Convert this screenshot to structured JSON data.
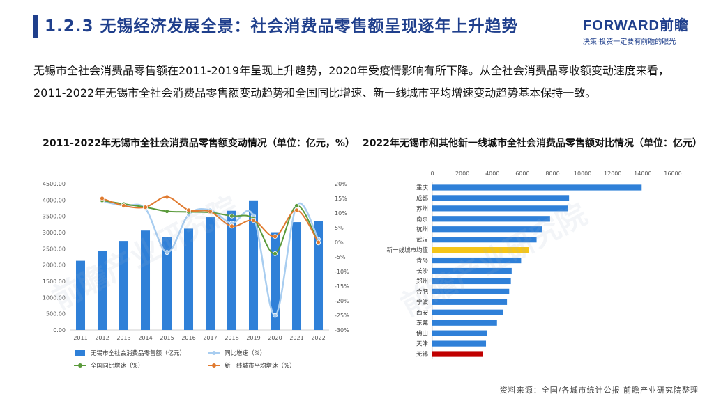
{
  "slide": {
    "title": "1.2.3 无锡经济发展全景：社会消费品零售额呈现逐年上升趋势",
    "intro": "无锡市全社会消费品零售额在2011-2019年呈现上升趋势，2020年受疫情影响有所下降。从全社会消费品零收额变动速度来看，2011-2022年无锡市全社会消费品零售额变动趋势和全国同比增速、新一线城市平均增速变动趋势基本保持一致。",
    "source": "资料来源：全国/各城市统计公报 前瞻产业研究院整理"
  },
  "brand": {
    "name": "FORWARD前瞻",
    "slogan": "决策·投资一定要有前瞻的眼光"
  },
  "watermark": "前瞻产业研究院",
  "colors": {
    "title_blue": "#1f3f8c",
    "bar_blue": "#2f80d8",
    "line_light_blue": "#a8cdf0",
    "line_green": "#5a9a3b",
    "line_orange": "#e07a2f",
    "hbar_blue": "#2f80d8",
    "hbar_yellow": "#f5c518",
    "hbar_red": "#c00000"
  },
  "chart_data": [
    {
      "type": "bar",
      "title": "2011-2022年无锡市全社会消费品零售额变动情况（单位：亿元，%）",
      "categories": [
        "2011",
        "2012",
        "2013",
        "2014",
        "2015",
        "2016",
        "2017",
        "2018",
        "2019",
        "2020",
        "2021",
        "2022"
      ],
      "y_ticks": [
        "4500.00",
        "4000.00",
        "3500.00",
        "3000.00",
        "2500.00",
        "2000.00",
        "1500.00",
        "1000.00",
        "500.00",
        "0.00"
      ],
      "y2_ticks": [
        "20%",
        "15%",
        "10%",
        "5%",
        "0%",
        "-5%",
        "-10%",
        "-15%",
        "-20%",
        "-25%",
        "-30%"
      ],
      "ylim": [
        0,
        4500
      ],
      "y2lim": [
        -30,
        20
      ],
      "series": [
        {
          "name": "无锡市全社会消费品零售额（亿元）",
          "kind": "bar",
          "axis": "left",
          "values": [
            2130,
            2430,
            2740,
            3060,
            2850,
            3120,
            3470,
            3670,
            3990,
            3010,
            3320,
            3350
          ]
        },
        {
          "name": "同比增速（%）",
          "kind": "line",
          "axis": "right",
          "values": [
            null,
            14.0,
            12.5,
            11.5,
            -3.5,
            9.5,
            11.0,
            6.5,
            9.0,
            -25.0,
            12.5,
            1.0
          ]
        },
        {
          "name": "全国同比增速（%）",
          "kind": "line",
          "axis": "right",
          "values": [
            null,
            14.3,
            13.1,
            12.0,
            10.6,
            10.4,
            10.2,
            9.0,
            8.0,
            -3.9,
            12.5,
            -0.2
          ]
        },
        {
          "name": "新一线城市平均增速（%）",
          "kind": "line",
          "axis": "right",
          "values": [
            null,
            15.0,
            12.5,
            12.0,
            15.5,
            11.0,
            10.5,
            5.5,
            7.5,
            2.0,
            11.0,
            0.0
          ]
        }
      ]
    },
    {
      "type": "bar",
      "orientation": "horizontal",
      "title": "2022年无锡市和其他新一线城市全社会消费品零售额对比情况（单位：亿元）",
      "x_ticks": [
        "0",
        "2000",
        "4000",
        "6000",
        "8000",
        "10000",
        "12000",
        "14000",
        "16000"
      ],
      "xlim": [
        0,
        16000
      ],
      "categories": [
        "重庆",
        "成都",
        "苏州",
        "南京",
        "杭州",
        "武汉",
        "新一线城市均值",
        "青岛",
        "长沙",
        "郑州",
        "合肥",
        "宁波",
        "西安",
        "东莞",
        "佛山",
        "天津",
        "无锡"
      ],
      "values": [
        13926,
        9097,
        9011,
        7832,
        7294,
        6936,
        6420,
        5908,
        5280,
        5225,
        5115,
        4967,
        4726,
        4303,
        3620,
        3572,
        3350
      ]
    }
  ]
}
